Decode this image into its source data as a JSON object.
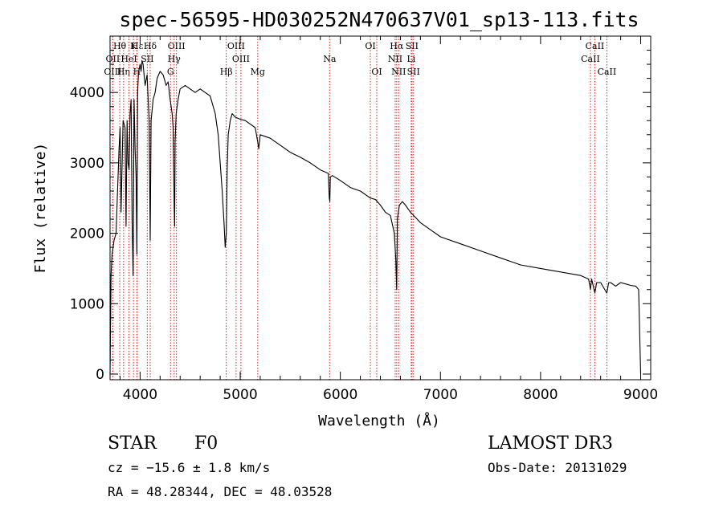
{
  "chart_data": {
    "type": "line",
    "title": "spec-56595-HD030252N470637V01_sp13-113.fits",
    "xlabel": "Wavelength (Å)",
    "ylabel": "Flux (relative)",
    "xlim": [
      3700,
      9100
    ],
    "ylim": [
      -80,
      4800
    ],
    "xticks": [
      4000,
      5000,
      6000,
      7000,
      8000,
      9000
    ],
    "yticks": [
      0,
      1000,
      2000,
      3000,
      4000
    ],
    "line_color": "#000000",
    "marker_color": "#cc2222",
    "spectrum": {
      "name": "Flux",
      "x": [
        3700,
        3710,
        3720,
        3740,
        3760,
        3770,
        3790,
        3800,
        3810,
        3830,
        3850,
        3860,
        3870,
        3880,
        3890,
        3900,
        3910,
        3920,
        3930,
        3940,
        3950,
        3960,
        3968,
        3975,
        3985,
        4000,
        4010,
        4020,
        4030,
        4050,
        4070,
        4090,
        4101,
        4110,
        4130,
        4150,
        4170,
        4200,
        4230,
        4260,
        4280,
        4300,
        4320,
        4330,
        4340,
        4345,
        4350,
        4360,
        4380,
        4400,
        4450,
        4500,
        4550,
        4600,
        4650,
        4700,
        4750,
        4780,
        4800,
        4820,
        4840,
        4850,
        4861,
        4870,
        4880,
        4900,
        4920,
        4950,
        5000,
        5050,
        5100,
        5150,
        5175,
        5185,
        5200,
        5300,
        5400,
        5500,
        5600,
        5700,
        5800,
        5880,
        5890,
        5895,
        5900,
        5920,
        6000,
        6100,
        6200,
        6300,
        6350,
        6400,
        6450,
        6500,
        6540,
        6555,
        6563,
        6570,
        6590,
        6620,
        6650,
        6700,
        6800,
        6900,
        7000,
        7200,
        7400,
        7600,
        7800,
        8000,
        8200,
        8400,
        8480,
        8498,
        8510,
        8542,
        8560,
        8600,
        8662,
        8680,
        8700,
        8750,
        8800,
        8850,
        8900,
        8950,
        8980,
        9000
      ],
      "y": [
        0,
        1400,
        1700,
        1900,
        2000,
        2400,
        3200,
        3500,
        2300,
        3600,
        3500,
        2100,
        3600,
        3000,
        2900,
        3700,
        3900,
        2200,
        1400,
        3900,
        3200,
        2800,
        1700,
        4000,
        4300,
        4400,
        4300,
        4450,
        4400,
        4100,
        4250,
        3600,
        1900,
        3600,
        3900,
        4000,
        4200,
        4300,
        4250,
        4100,
        4150,
        3900,
        3700,
        3500,
        2400,
        2100,
        3300,
        3700,
        3900,
        4050,
        4100,
        4050,
        4000,
        4050,
        4000,
        3950,
        3700,
        3400,
        3000,
        2600,
        2100,
        1800,
        2000,
        2900,
        3400,
        3600,
        3700,
        3650,
        3620,
        3600,
        3550,
        3500,
        3300,
        3200,
        3400,
        3350,
        3250,
        3150,
        3080,
        3000,
        2900,
        2850,
        2500,
        2450,
        2800,
        2820,
        2750,
        2650,
        2600,
        2500,
        2480,
        2400,
        2300,
        2250,
        2000,
        1600,
        1200,
        2200,
        2400,
        2450,
        2400,
        2300,
        2150,
        2050,
        1950,
        1850,
        1750,
        1650,
        1550,
        1500,
        1450,
        1400,
        1350,
        1200,
        1350,
        1150,
        1300,
        1300,
        1150,
        1300,
        1300,
        1250,
        1300,
        1280,
        1260,
        1250,
        1200,
        0
      ]
    },
    "lines": [
      {
        "name": "Hθ",
        "wl": 3797,
        "row": 1
      },
      {
        "name": "OII",
        "wl": 3727,
        "row": 2
      },
      {
        "name": "OIII",
        "wl": 3727,
        "row": 3
      },
      {
        "name": "Hη",
        "wl": 3835,
        "row": 3
      },
      {
        "name": "HeI",
        "wl": 3889,
        "row": 2
      },
      {
        "name": "K",
        "wl": 3934,
        "row": 1
      },
      {
        "name": "SII",
        "wl": 4072,
        "row": 2
      },
      {
        "name": "H",
        "wl": 3968,
        "row": 3
      },
      {
        "name": "Hε",
        "wl": 3970,
        "row": 1
      },
      {
        "name": "Hδ",
        "wl": 4101,
        "row": 1
      },
      {
        "name": "OIII",
        "wl": 4363,
        "row": 1
      },
      {
        "name": "Hγ",
        "wl": 4340,
        "row": 2
      },
      {
        "name": "G",
        "wl": 4304,
        "row": 3
      },
      {
        "name": "OIII",
        "wl": 4959,
        "row": 1
      },
      {
        "name": "OIII",
        "wl": 5007,
        "row": 2
      },
      {
        "name": "Hβ",
        "wl": 4861,
        "row": 3
      },
      {
        "name": "Mg",
        "wl": 5175,
        "row": 3
      },
      {
        "name": "Na",
        "wl": 5893,
        "row": 2
      },
      {
        "name": "OI",
        "wl": 6300,
        "row": 1
      },
      {
        "name": "OI",
        "wl": 6364,
        "row": 3
      },
      {
        "name": "Hα",
        "wl": 6563,
        "row": 1
      },
      {
        "name": "NII",
        "wl": 6548,
        "row": 2
      },
      {
        "name": "NII",
        "wl": 6583,
        "row": 3
      },
      {
        "name": "SII",
        "wl": 6716,
        "row": 1
      },
      {
        "name": "Li",
        "wl": 6708,
        "row": 2
      },
      {
        "name": "SII",
        "wl": 6731,
        "row": 3
      },
      {
        "name": "CaII",
        "wl": 8542,
        "row": 1
      },
      {
        "name": "CaII",
        "wl": 8498,
        "row": 2
      },
      {
        "name": "CaII",
        "wl": 8662,
        "row": 3
      }
    ]
  },
  "info": {
    "object_class": "STAR",
    "subclass": "F0",
    "survey": "LAMOST DR3",
    "redshift": "cz = −15.6 ± 1.8 km/s",
    "obs_date": "Obs-Date: 20131029",
    "coords": "RA =  48.28344, DEC =  48.03528"
  }
}
